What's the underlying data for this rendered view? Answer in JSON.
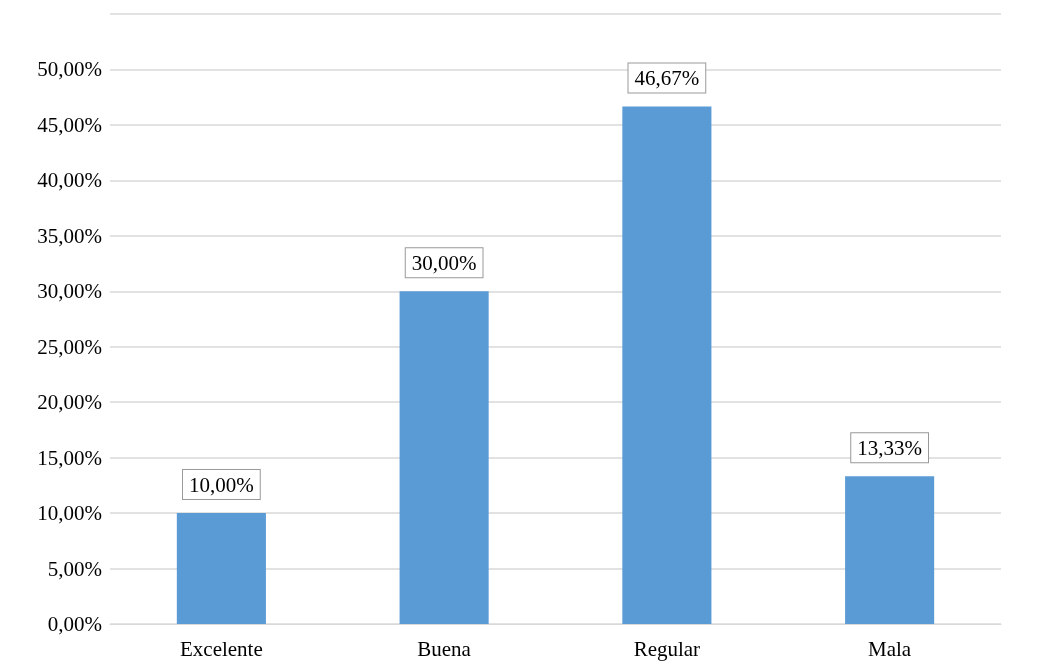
{
  "chart_data": {
    "type": "bar",
    "categories": [
      "Excelente",
      "Buena",
      "Regular",
      "Mala"
    ],
    "values": [
      10.0,
      30.0,
      46.67,
      13.33
    ],
    "value_labels": [
      "10,00%",
      "30,00%",
      "46,67%",
      "13,33%"
    ],
    "color": "#5b9bd5",
    "ylim": [
      0,
      55
    ],
    "yticks": [
      {
        "value": 0,
        "label": "0,00%"
      },
      {
        "value": 5,
        "label": "5,00%"
      },
      {
        "value": 10,
        "label": "10,00%"
      },
      {
        "value": 15,
        "label": "15,00%"
      },
      {
        "value": 20,
        "label": "20,00%"
      },
      {
        "value": 25,
        "label": "25,00%"
      },
      {
        "value": 30,
        "label": "30,00%"
      },
      {
        "value": 35,
        "label": "35,00%"
      },
      {
        "value": 40,
        "label": "40,00%"
      },
      {
        "value": 45,
        "label": "45,00%"
      },
      {
        "value": 50,
        "label": "50,00%"
      },
      {
        "value": 55,
        "label": null
      }
    ],
    "grid": true
  }
}
